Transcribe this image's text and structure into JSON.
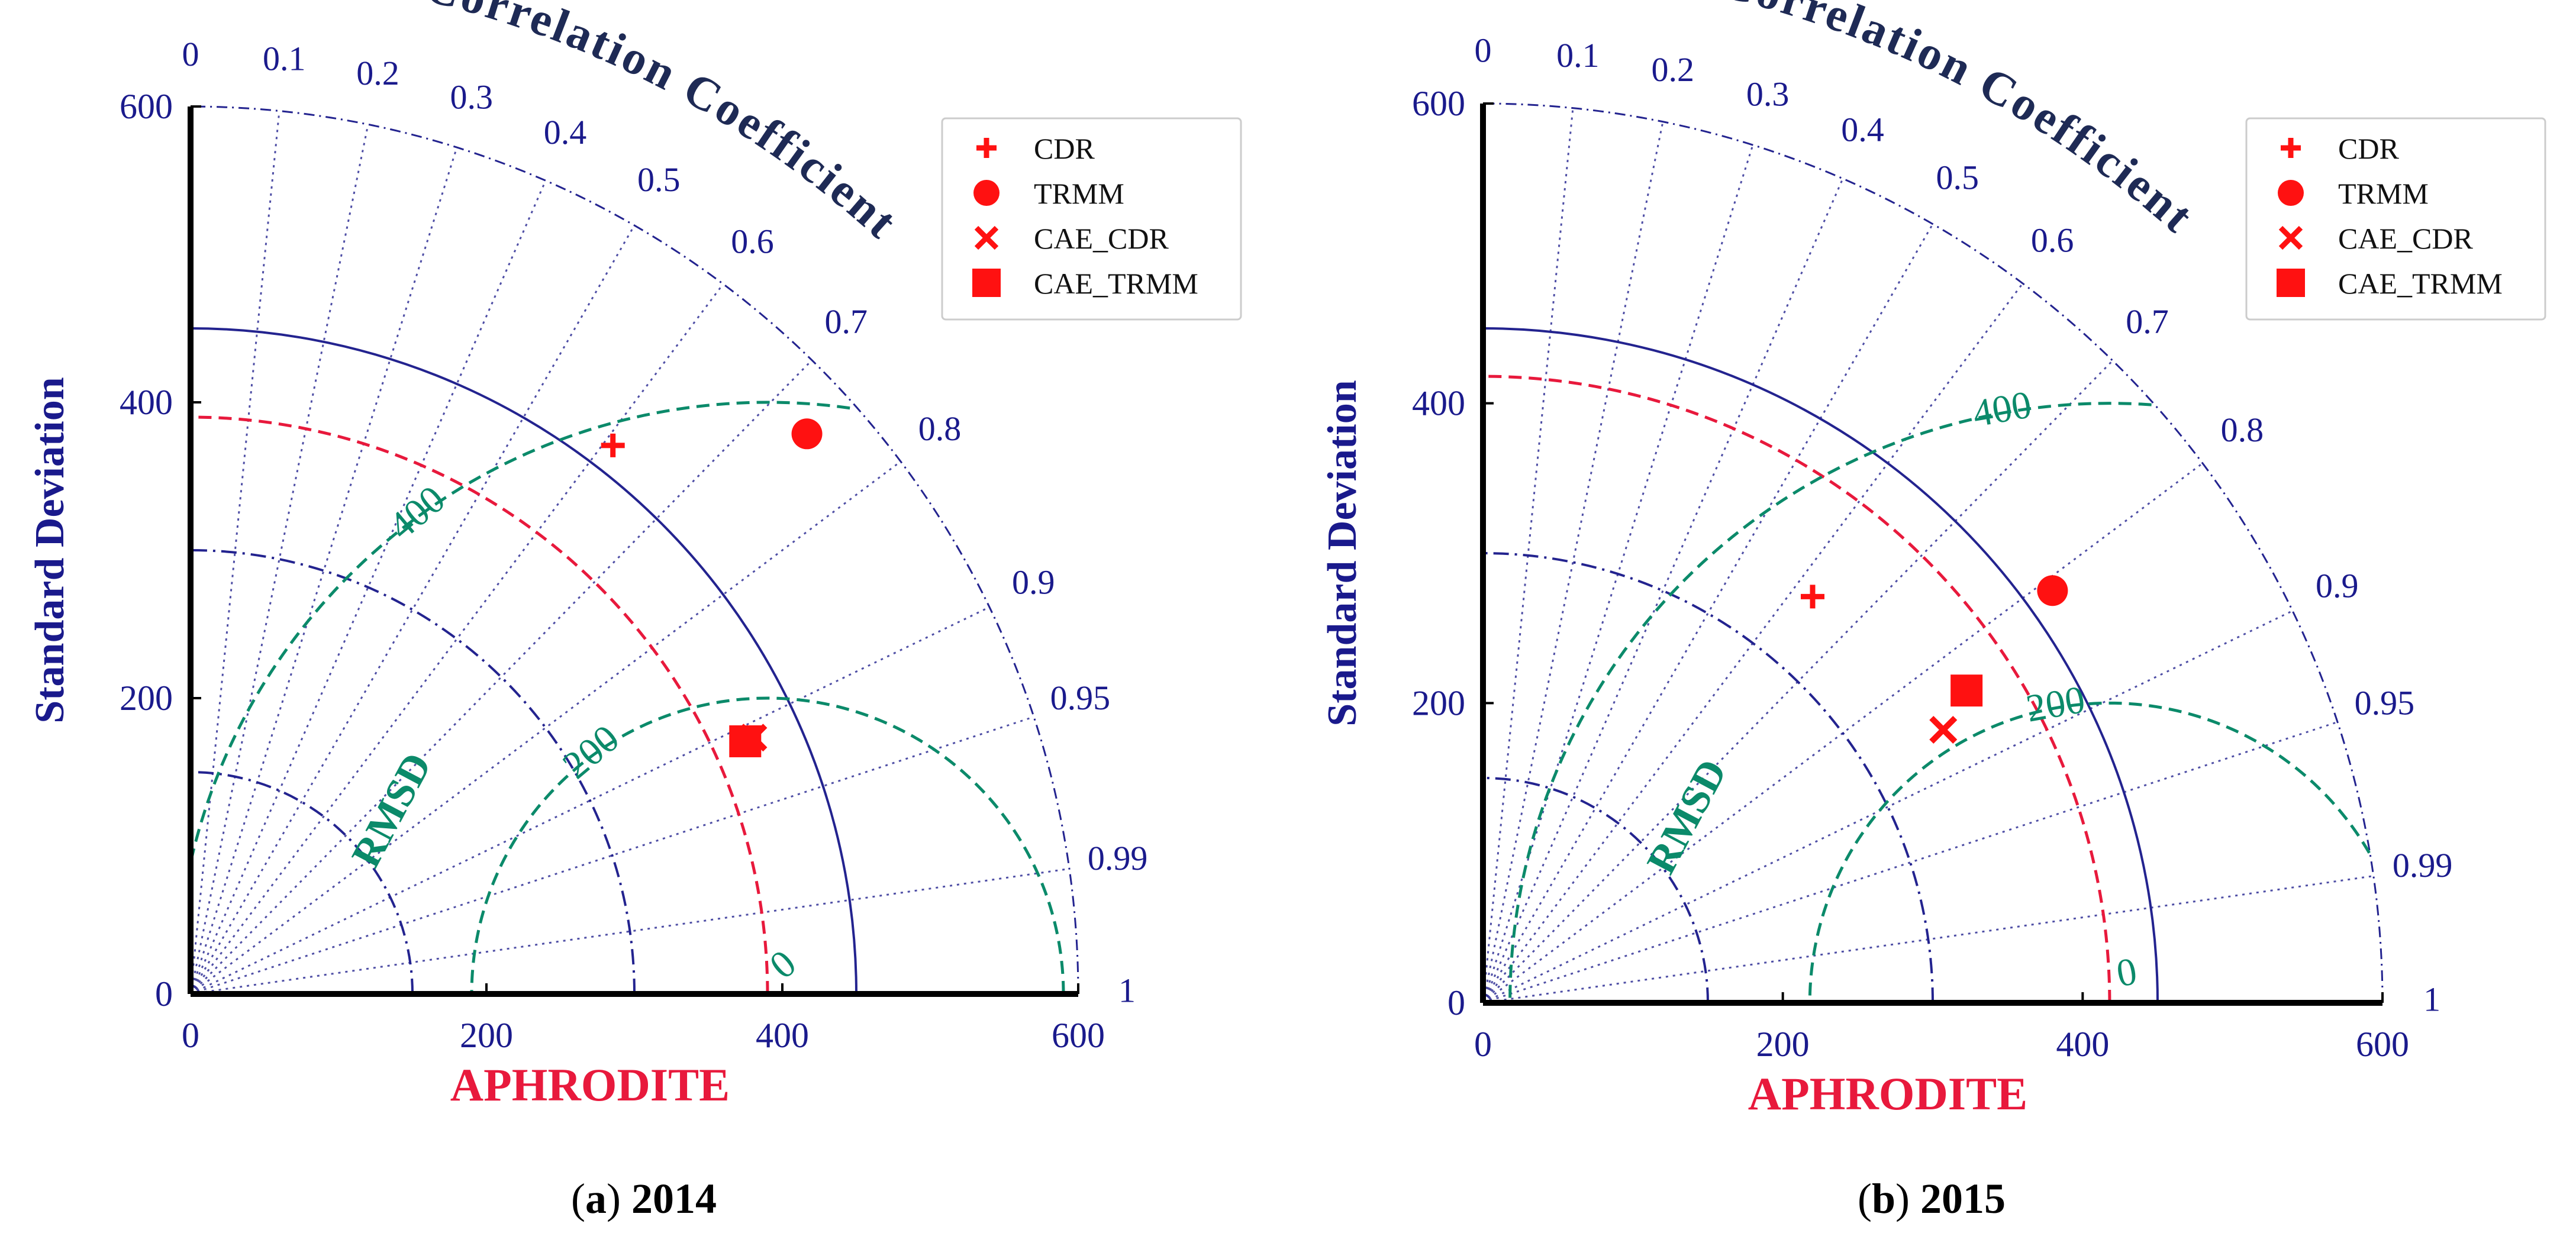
{
  "chart_data": [
    {
      "type": "taylor",
      "panel_label": "a",
      "year": "2014",
      "ylabel": "Standard Deviation",
      "xlabel": "APHRODITE",
      "arc_label": "Correlation Coefficient",
      "rmsd_label": "RMSD",
      "ref_std": 390,
      "max_std": 600,
      "std_ticks": [
        "0",
        "200",
        "400",
        "600"
      ],
      "std_tick_values": [
        0,
        200,
        400,
        600
      ],
      "std_arcs": [
        150,
        300,
        450
      ],
      "corr_ticks": [
        "0",
        "0.1",
        "0.2",
        "0.3",
        "0.4",
        "0.5",
        "0.6",
        "0.7",
        "0.8",
        "0.9",
        "0.95",
        "0.99",
        "1"
      ],
      "corr_tick_values": [
        0,
        0.1,
        0.2,
        0.3,
        0.4,
        0.5,
        0.6,
        0.7,
        0.8,
        0.9,
        0.95,
        0.99,
        1
      ],
      "rmsd_contours": [
        0,
        200,
        400
      ],
      "rmsd_labels": [
        "0",
        "200",
        "400"
      ],
      "points": [
        {
          "name": "CDR",
          "marker": "plus",
          "std": 468,
          "corr": 0.61
        },
        {
          "name": "TRMM",
          "marker": "circle",
          "std": 563,
          "corr": 0.74
        },
        {
          "name": "CAE_CDR",
          "marker": "x",
          "std": 418,
          "corr": 0.91
        },
        {
          "name": "CAE_TRMM",
          "marker": "square",
          "std": 412,
          "corr": 0.91
        }
      ],
      "legend": [
        "CDR",
        "TRMM",
        "CAE_CDR",
        "CAE_TRMM"
      ],
      "legend_position": "top-right"
    },
    {
      "type": "taylor",
      "panel_label": "b",
      "year": "2015",
      "ylabel": "Standard Deviation",
      "xlabel": "APHRODITE",
      "arc_label": "Correlation Coefficient",
      "rmsd_label": "RMSD",
      "ref_std": 418,
      "max_std": 600,
      "std_ticks": [
        "0",
        "200",
        "400",
        "600"
      ],
      "std_tick_values": [
        0,
        200,
        400,
        600
      ],
      "std_arcs": [
        150,
        300,
        450
      ],
      "corr_ticks": [
        "0",
        "0.1",
        "0.2",
        "0.3",
        "0.4",
        "0.5",
        "0.6",
        "0.7",
        "0.8",
        "0.9",
        "0.95",
        "0.99",
        "1"
      ],
      "corr_tick_values": [
        0,
        0.1,
        0.2,
        0.3,
        0.4,
        0.5,
        0.6,
        0.7,
        0.8,
        0.9,
        0.95,
        0.99,
        1
      ],
      "rmsd_contours": [
        0,
        200,
        400
      ],
      "rmsd_labels": [
        "0",
        "200",
        "400"
      ],
      "points": [
        {
          "name": "CDR",
          "marker": "plus",
          "std": 349,
          "corr": 0.63
        },
        {
          "name": "TRMM",
          "marker": "circle",
          "std": 469,
          "corr": 0.81
        },
        {
          "name": "CAE_CDR",
          "marker": "x",
          "std": 357,
          "corr": 0.86
        },
        {
          "name": "CAE_TRMM",
          "marker": "square",
          "std": 384,
          "corr": 0.84
        }
      ],
      "legend": [
        "CDR",
        "TRMM",
        "CAE_CDR",
        "CAE_TRMM"
      ],
      "legend_position": "top-right"
    }
  ],
  "colors": {
    "axis_text": "#1a1a8c",
    "ref_arc": "#e8193c",
    "rmsd": "#0b8a6a",
    "marker": "#ff1111",
    "std_arc": "#23238f"
  }
}
